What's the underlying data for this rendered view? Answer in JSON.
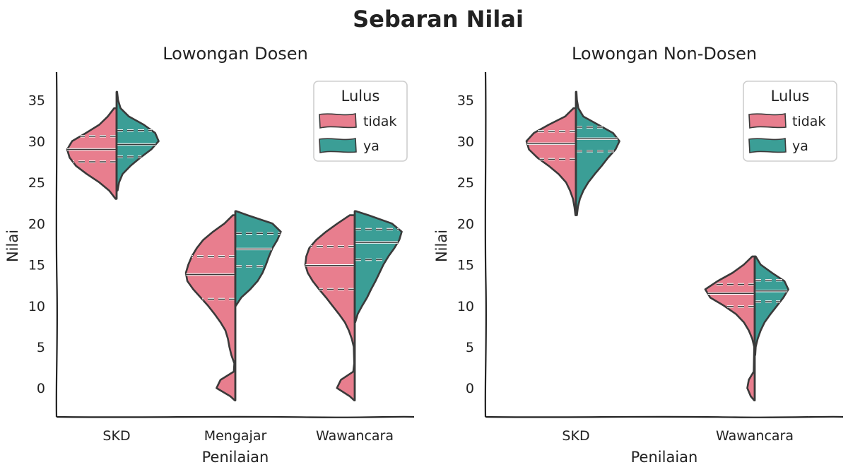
{
  "figure": {
    "title": "Sebaran Nilai"
  },
  "colors": {
    "tidak": "#E87E8E",
    "ya": "#3B9E96",
    "outline": "#3a3a3a"
  },
  "chart_data": [
    {
      "type": "violin",
      "title": "Lowongan Dosen",
      "xlabel": "Penilaian",
      "ylabel": "Nilai",
      "categories": [
        "SKD",
        "Mengajar",
        "Wawancara"
      ],
      "yticks": [
        0,
        5,
        10,
        15,
        20,
        25,
        30,
        35
      ],
      "ylim": [
        -3.5,
        39
      ],
      "split": true,
      "inner": "quartile",
      "legend": {
        "title": "Lulus",
        "position": "top-right",
        "entries": [
          "tidak",
          "ya"
        ]
      },
      "series": [
        {
          "name": "tidak",
          "groups": [
            {
              "category": "SKD",
              "profile": [
                [
                  23,
                  0.02
                ],
                [
                  24,
                  0.15
                ],
                [
                  25,
                  0.35
                ],
                [
                  26,
                  0.6
                ],
                [
                  27,
                  0.82
                ],
                [
                  28,
                  0.95
                ],
                [
                  29,
                  1.0
                ],
                [
                  30,
                  0.9
                ],
                [
                  31,
                  0.62
                ],
                [
                  32,
                  0.35
                ],
                [
                  33,
                  0.18
                ],
                [
                  34,
                  0.05
                ]
              ],
              "quartiles": [
                27.5,
                29.0,
                30.6
              ]
            },
            {
              "category": "Mengajar",
              "profile": [
                [
                  -1.5,
                  0.01
                ],
                [
                  -1,
                  0.1
                ],
                [
                  0,
                  0.38
                ],
                [
                  1,
                  0.3
                ],
                [
                  2,
                  0.03
                ],
                [
                  3,
                  0.02
                ],
                [
                  4,
                  0.08
                ],
                [
                  5,
                  0.12
                ],
                [
                  6,
                  0.15
                ],
                [
                  7,
                  0.2
                ],
                [
                  8,
                  0.3
                ],
                [
                  9,
                  0.42
                ],
                [
                  10,
                  0.55
                ],
                [
                  11,
                  0.7
                ],
                [
                  12,
                  0.85
                ],
                [
                  13,
                  0.97
                ],
                [
                  14,
                  1.0
                ],
                [
                  15,
                  0.95
                ],
                [
                  16,
                  0.88
                ],
                [
                  17,
                  0.78
                ],
                [
                  18,
                  0.65
                ],
                [
                  19,
                  0.45
                ],
                [
                  20,
                  0.22
                ],
                [
                  21,
                  0.05
                ]
              ],
              "quartiles": [
                10.8,
                13.8,
                16.0
              ]
            },
            {
              "category": "Wawancara",
              "profile": [
                [
                  -1.5,
                  0.01
                ],
                [
                  -1,
                  0.1
                ],
                [
                  0,
                  0.36
                ],
                [
                  1,
                  0.28
                ],
                [
                  2,
                  0.03
                ],
                [
                  3,
                  0.01
                ],
                [
                  5,
                  0.02
                ],
                [
                  6,
                  0.06
                ],
                [
                  7,
                  0.12
                ],
                [
                  8,
                  0.2
                ],
                [
                  9,
                  0.32
                ],
                [
                  10,
                  0.45
                ],
                [
                  11,
                  0.58
                ],
                [
                  12,
                  0.72
                ],
                [
                  13,
                  0.85
                ],
                [
                  14,
                  0.95
                ],
                [
                  15,
                  1.0
                ],
                [
                  16,
                  0.98
                ],
                [
                  17,
                  0.92
                ],
                [
                  18,
                  0.78
                ],
                [
                  19,
                  0.58
                ],
                [
                  20,
                  0.35
                ],
                [
                  21,
                  0.1
                ]
              ],
              "quartiles": [
                12.0,
                14.9,
                17.2
              ]
            }
          ]
        },
        {
          "name": "ya",
          "groups": [
            {
              "category": "SKD",
              "profile": [
                [
                  24,
                  0.02
                ],
                [
                  25,
                  0.05
                ],
                [
                  26,
                  0.12
                ],
                [
                  27,
                  0.28
                ],
                [
                  28,
                  0.48
                ],
                [
                  29,
                  0.7
                ],
                [
                  30,
                  0.85
                ],
                [
                  31,
                  0.78
                ],
                [
                  32,
                  0.55
                ],
                [
                  33,
                  0.25
                ],
                [
                  34,
                  0.08
                ],
                [
                  35,
                  0.03
                ],
                [
                  36,
                  0.01
                ]
              ],
              "quartiles": [
                28.1,
                29.6,
                31.3
              ]
            },
            {
              "category": "Mengajar",
              "profile": [
                [
                  10,
                  0.01
                ],
                [
                  11,
                  0.12
                ],
                [
                  12,
                  0.3
                ],
                [
                  13,
                  0.45
                ],
                [
                  14,
                  0.55
                ],
                [
                  15,
                  0.62
                ],
                [
                  16,
                  0.68
                ],
                [
                  17,
                  0.75
                ],
                [
                  18,
                  0.85
                ],
                [
                  19,
                  0.92
                ],
                [
                  20,
                  0.75
                ],
                [
                  21,
                  0.25
                ],
                [
                  21.5,
                  0.02
                ]
              ],
              "quartiles": [
                14.8,
                16.9,
                18.8
              ]
            },
            {
              "category": "Wawancara",
              "profile": [
                [
                  8,
                  0.01
                ],
                [
                  9,
                  0.06
                ],
                [
                  10,
                  0.15
                ],
                [
                  11,
                  0.25
                ],
                [
                  12,
                  0.33
                ],
                [
                  13,
                  0.42
                ],
                [
                  14,
                  0.5
                ],
                [
                  15,
                  0.58
                ],
                [
                  16,
                  0.68
                ],
                [
                  17,
                  0.8
                ],
                [
                  18,
                  0.9
                ],
                [
                  19,
                  0.95
                ],
                [
                  20,
                  0.75
                ],
                [
                  21,
                  0.28
                ],
                [
                  21.5,
                  0.02
                ]
              ],
              "quartiles": [
                15.6,
                17.7,
                19.3
              ]
            }
          ]
        }
      ]
    },
    {
      "type": "violin",
      "title": "Lowongan Non-Dosen",
      "xlabel": "Penilaian",
      "ylabel": "Nilai",
      "categories": [
        "SKD",
        "Wawancara"
      ],
      "yticks": [
        0,
        5,
        10,
        15,
        20,
        25,
        30,
        35
      ],
      "ylim": [
        -3.5,
        39
      ],
      "split": true,
      "inner": "quartile",
      "legend": {
        "title": "Lulus",
        "position": "top-right",
        "entries": [
          "tidak",
          "ya"
        ]
      },
      "series": [
        {
          "name": "tidak",
          "groups": [
            {
              "category": "SKD",
              "profile": [
                [
                  21,
                  0.01
                ],
                [
                  22,
                  0.03
                ],
                [
                  23,
                  0.06
                ],
                [
                  24,
                  0.12
                ],
                [
                  25,
                  0.2
                ],
                [
                  26,
                  0.35
                ],
                [
                  27,
                  0.55
                ],
                [
                  28,
                  0.78
                ],
                [
                  29,
                  0.95
                ],
                [
                  30,
                  1.0
                ],
                [
                  31,
                  0.85
                ],
                [
                  32,
                  0.55
                ],
                [
                  33,
                  0.22
                ],
                [
                  34,
                  0.05
                ]
              ],
              "quartiles": [
                27.8,
                29.7,
                31.2
              ]
            },
            {
              "category": "Wawancara",
              "profile": [
                [
                  -1.5,
                  0.01
                ],
                [
                  -1,
                  0.08
                ],
                [
                  0,
                  0.15
                ],
                [
                  1,
                  0.12
                ],
                [
                  2,
                  0.02
                ],
                [
                  5,
                  0.01
                ],
                [
                  6,
                  0.05
                ],
                [
                  7,
                  0.12
                ],
                [
                  8,
                  0.22
                ],
                [
                  9,
                  0.38
                ],
                [
                  10,
                  0.62
                ],
                [
                  11,
                  0.9
                ],
                [
                  12,
                  1.0
                ],
                [
                  13,
                  0.75
                ],
                [
                  14,
                  0.45
                ],
                [
                  15,
                  0.22
                ],
                [
                  16,
                  0.05
                ]
              ],
              "quartiles": [
                9.9,
                11.5,
                12.6
              ]
            }
          ]
        },
        {
          "name": "ya",
          "groups": [
            {
              "category": "SKD",
              "profile": [
                [
                  21,
                  0.02
                ],
                [
                  22,
                  0.04
                ],
                [
                  23,
                  0.08
                ],
                [
                  24,
                  0.15
                ],
                [
                  25,
                  0.25
                ],
                [
                  26,
                  0.38
                ],
                [
                  27,
                  0.52
                ],
                [
                  28,
                  0.65
                ],
                [
                  29,
                  0.8
                ],
                [
                  30,
                  0.88
                ],
                [
                  31,
                  0.75
                ],
                [
                  32,
                  0.45
                ],
                [
                  33,
                  0.15
                ],
                [
                  34,
                  0.05
                ],
                [
                  35,
                  0.02
                ],
                [
                  36,
                  0.01
                ]
              ],
              "quartiles": [
                28.8,
                30.3,
                31.7
              ]
            },
            {
              "category": "Wawancara",
              "profile": [
                [
                  4,
                  0.01
                ],
                [
                  5,
                  0.02
                ],
                [
                  6,
                  0.06
                ],
                [
                  7,
                  0.12
                ],
                [
                  8,
                  0.2
                ],
                [
                  9,
                  0.32
                ],
                [
                  10,
                  0.45
                ],
                [
                  11,
                  0.58
                ],
                [
                  12,
                  0.68
                ],
                [
                  13,
                  0.6
                ],
                [
                  14,
                  0.35
                ],
                [
                  15,
                  0.12
                ],
                [
                  16,
                  0.02
                ]
              ],
              "quartiles": [
                10.5,
                11.8,
                13.1
              ]
            }
          ]
        }
      ]
    }
  ]
}
